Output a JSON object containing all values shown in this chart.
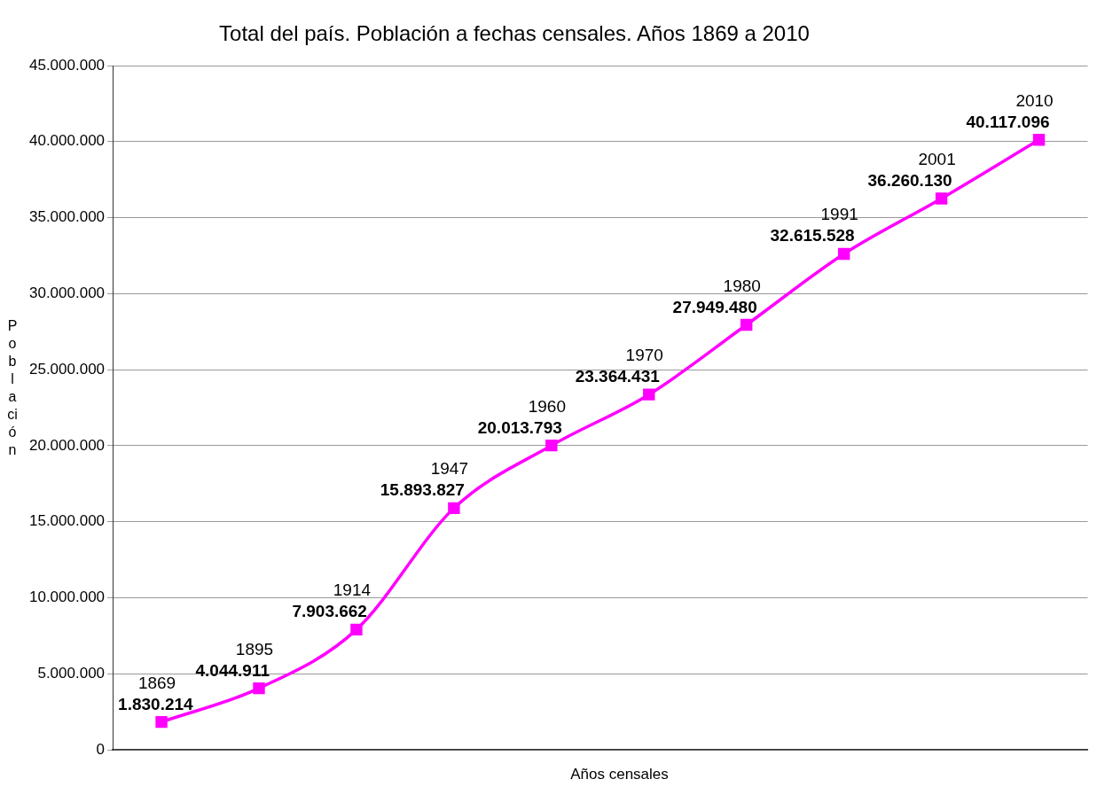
{
  "chart_data": {
    "type": "line",
    "title": "Total del país. Población a fechas censales. Años 1869 a 2010",
    "xlabel": "Años censales",
    "ylabel": "Población",
    "categories": [
      "1869",
      "1895",
      "1914",
      "1947",
      "1960",
      "1970",
      "1980",
      "1991",
      "2001",
      "2010"
    ],
    "series": [
      {
        "color": "#ff00ff",
        "values": [
          1830214,
          4044911,
          7903662,
          15893827,
          20013793,
          23364431,
          27949480,
          32615528,
          36260130,
          40117096
        ],
        "value_labels": [
          "1.830.214",
          "4.044.911",
          "7.903.662",
          "15.893.827",
          "20.013.793",
          "23.364.431",
          "27.949.480",
          "32.615.528",
          "36.260.130",
          "40.117.096"
        ]
      }
    ],
    "ylim": [
      0,
      45000000
    ],
    "yticks": [
      0,
      {
        "value": 5000000,
        "label": "5.000.000"
      },
      {
        "value": 10000000,
        "label": "10.000.000"
      },
      {
        "value": 15000000,
        "label": "15.000.000"
      },
      {
        "value": 20000000,
        "label": "20.000.000"
      },
      {
        "value": 25000000,
        "label": "25.000.000"
      },
      {
        "value": 30000000,
        "label": "30.000.000"
      },
      {
        "value": 35000000,
        "label": "35.000.000"
      },
      {
        "value": 40000000,
        "label": "40.000.000"
      },
      {
        "value": 45000000,
        "label": "45.000.000"
      }
    ],
    "grid": "y",
    "legend": false,
    "marker": "square",
    "line_style": "solid",
    "tick_labels": "y"
  }
}
